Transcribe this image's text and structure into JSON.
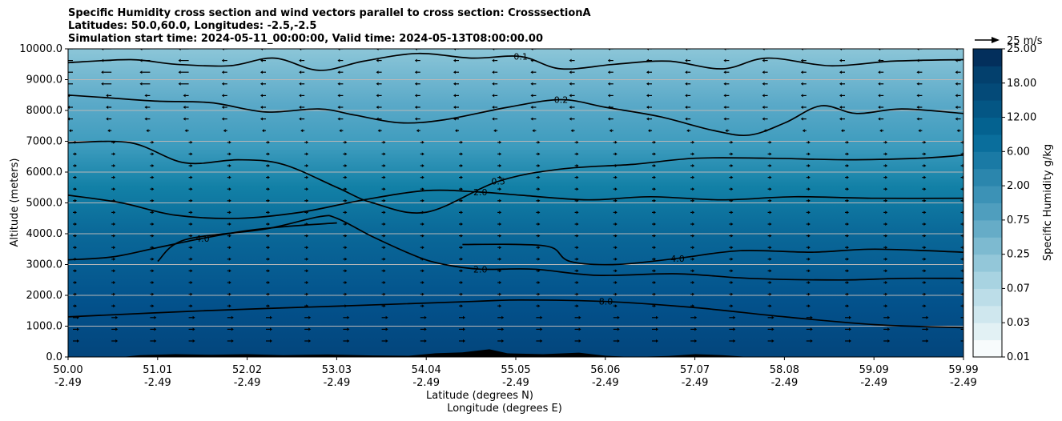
{
  "chart_data": {
    "type": "contour-cross-section",
    "title_lines": [
      "Specific Humidity cross section and wind vectors parallel to cross section: CrosssectionA",
      "Latitudes: 50.0,60.0, Longitudes: -2.5,-2.5",
      "Simulation start time: 2024-05-11_00:00:00, Valid time: 2024-05-13T08:00:00.00"
    ],
    "ylabel": "Altitude (meters)",
    "xlabel_lat": "Latitude (degrees N)",
    "xlabel_lon": "Longitude (degrees E)",
    "ylim": [
      0,
      10000
    ],
    "yticks": [
      "0.0",
      "1000.0",
      "2000.0",
      "3000.0",
      "4000.0",
      "5000.0",
      "6000.0",
      "7000.0",
      "8000.0",
      "9000.0",
      "10000.0"
    ],
    "xticks_lat": [
      "50.00",
      "51.01",
      "52.02",
      "53.03",
      "54.04",
      "55.05",
      "56.06",
      "57.07",
      "58.08",
      "59.09",
      "59.99"
    ],
    "xticks_lon": [
      "-2.49",
      "-2.49",
      "-2.49",
      "-2.49",
      "-2.49",
      "-2.49",
      "-2.49",
      "-2.49",
      "-2.49",
      "-2.49",
      "-2.49"
    ],
    "colorbar_label": "Specific Humidity g/kg",
    "colorbar_ticks": [
      "0.01",
      "0.03",
      "0.07",
      "0.25",
      "0.75",
      "2.00",
      "6.00",
      "12.00",
      "18.00",
      "25.00"
    ],
    "colorbar_levels": 18,
    "quiver_key": "25 m/s",
    "contour_labels": [
      "0.1",
      "0.2",
      "0.5",
      "2.0",
      "4.0",
      "8.0"
    ],
    "contours": [
      {
        "level": 8.0,
        "points": [
          [
            50.0,
            1300
          ],
          [
            51.5,
            1500
          ],
          [
            53.0,
            1650
          ],
          [
            54.5,
            1800
          ],
          [
            55.05,
            1850
          ],
          [
            56.0,
            1800
          ],
          [
            57.0,
            1600
          ],
          [
            58.0,
            1300
          ],
          [
            59.0,
            1050
          ],
          [
            59.99,
            950
          ]
        ]
      },
      {
        "level": 4.0,
        "points": [
          [
            50.0,
            3150
          ],
          [
            50.5,
            3250
          ],
          [
            51.0,
            3550
          ],
          [
            51.5,
            3850
          ],
          [
            52.0,
            4100
          ],
          [
            52.5,
            4250
          ],
          [
            53.0,
            4350
          ]
        ]
      },
      {
        "level": 4.0,
        "points": [
          [
            54.4,
            3650
          ],
          [
            55.05,
            3650
          ],
          [
            55.4,
            3550
          ],
          [
            55.6,
            3100
          ],
          [
            56.1,
            3000
          ],
          [
            56.8,
            3200
          ],
          [
            57.5,
            3450
          ],
          [
            58.3,
            3400
          ],
          [
            59.0,
            3500
          ],
          [
            59.99,
            3400
          ]
        ]
      },
      {
        "level": 2.0,
        "points": [
          [
            50.0,
            5250
          ],
          [
            50.6,
            5000
          ],
          [
            51.2,
            4600
          ],
          [
            51.9,
            4500
          ],
          [
            52.6,
            4700
          ],
          [
            53.3,
            5100
          ],
          [
            54.0,
            5400
          ],
          [
            54.6,
            5350
          ],
          [
            55.05,
            5250
          ],
          [
            55.8,
            5100
          ],
          [
            56.5,
            5200
          ],
          [
            57.3,
            5100
          ],
          [
            58.1,
            5200
          ],
          [
            59.0,
            5150
          ],
          [
            59.99,
            5150
          ]
        ]
      },
      {
        "level": 2.0,
        "points": [
          [
            51.0,
            3100
          ],
          [
            51.3,
            3800
          ],
          [
            52.2,
            4150
          ],
          [
            52.8,
            4550
          ],
          [
            53.0,
            4500
          ],
          [
            53.4,
            3900
          ],
          [
            53.9,
            3250
          ],
          [
            54.2,
            3000
          ],
          [
            54.6,
            2850
          ],
          [
            55.2,
            2850
          ],
          [
            55.9,
            2650
          ],
          [
            56.8,
            2700
          ],
          [
            57.6,
            2550
          ],
          [
            58.6,
            2500
          ],
          [
            59.3,
            2550
          ],
          [
            59.99,
            2550
          ]
        ]
      },
      {
        "level": 0.5,
        "points": [
          [
            50.0,
            6950
          ],
          [
            50.7,
            6950
          ],
          [
            51.3,
            6300
          ],
          [
            51.9,
            6400
          ],
          [
            52.4,
            6250
          ],
          [
            53.0,
            5500
          ],
          [
            53.4,
            5000
          ],
          [
            54.0,
            4700
          ],
          [
            54.8,
            5700
          ],
          [
            55.5,
            6100
          ],
          [
            56.3,
            6250
          ],
          [
            57.0,
            6450
          ],
          [
            57.8,
            6450
          ],
          [
            58.7,
            6400
          ],
          [
            59.5,
            6450
          ],
          [
            59.99,
            6550
          ]
        ]
      },
      {
        "level": 0.2,
        "points": [
          [
            50.0,
            8500
          ],
          [
            50.5,
            8400
          ],
          [
            51.0,
            8300
          ],
          [
            51.6,
            8250
          ],
          [
            52.2,
            7950
          ],
          [
            52.8,
            8050
          ],
          [
            53.2,
            7850
          ],
          [
            53.7,
            7600
          ],
          [
            54.2,
            7700
          ],
          [
            54.9,
            8100
          ],
          [
            55.5,
            8350
          ],
          [
            56.0,
            8100
          ],
          [
            56.6,
            7800
          ],
          [
            57.2,
            7350
          ],
          [
            57.6,
            7200
          ],
          [
            58.0,
            7600
          ],
          [
            58.4,
            8150
          ],
          [
            58.8,
            7900
          ],
          [
            59.3,
            8050
          ],
          [
            59.99,
            7900
          ]
        ]
      },
      {
        "level": 0.1,
        "points": [
          [
            50.0,
            9550
          ],
          [
            50.7,
            9650
          ],
          [
            51.2,
            9500
          ],
          [
            51.8,
            9450
          ],
          [
            52.3,
            9700
          ],
          [
            52.8,
            9300
          ],
          [
            53.3,
            9600
          ],
          [
            53.9,
            9850
          ],
          [
            54.5,
            9700
          ],
          [
            55.05,
            9750
          ],
          [
            55.5,
            9350
          ],
          [
            56.1,
            9500
          ],
          [
            56.7,
            9600
          ],
          [
            57.3,
            9350
          ],
          [
            57.8,
            9700
          ],
          [
            58.5,
            9450
          ],
          [
            59.2,
            9600
          ],
          [
            59.99,
            9650
          ]
        ]
      }
    ],
    "terrain": [
      [
        50.0,
        0
      ],
      [
        50.6,
        0
      ],
      [
        50.8,
        60
      ],
      [
        51.2,
        90
      ],
      [
        51.6,
        70
      ],
      [
        52.0,
        90
      ],
      [
        52.4,
        60
      ],
      [
        52.9,
        80
      ],
      [
        53.4,
        50
      ],
      [
        53.8,
        40
      ],
      [
        54.1,
        120
      ],
      [
        54.4,
        150
      ],
      [
        54.7,
        250
      ],
      [
        54.9,
        120
      ],
      [
        55.3,
        90
      ],
      [
        55.7,
        140
      ],
      [
        56.0,
        40
      ],
      [
        56.3,
        0
      ],
      [
        56.7,
        30
      ],
      [
        57.0,
        90
      ],
      [
        57.3,
        60
      ],
      [
        57.6,
        0
      ],
      [
        59.99,
        0
      ]
    ]
  }
}
